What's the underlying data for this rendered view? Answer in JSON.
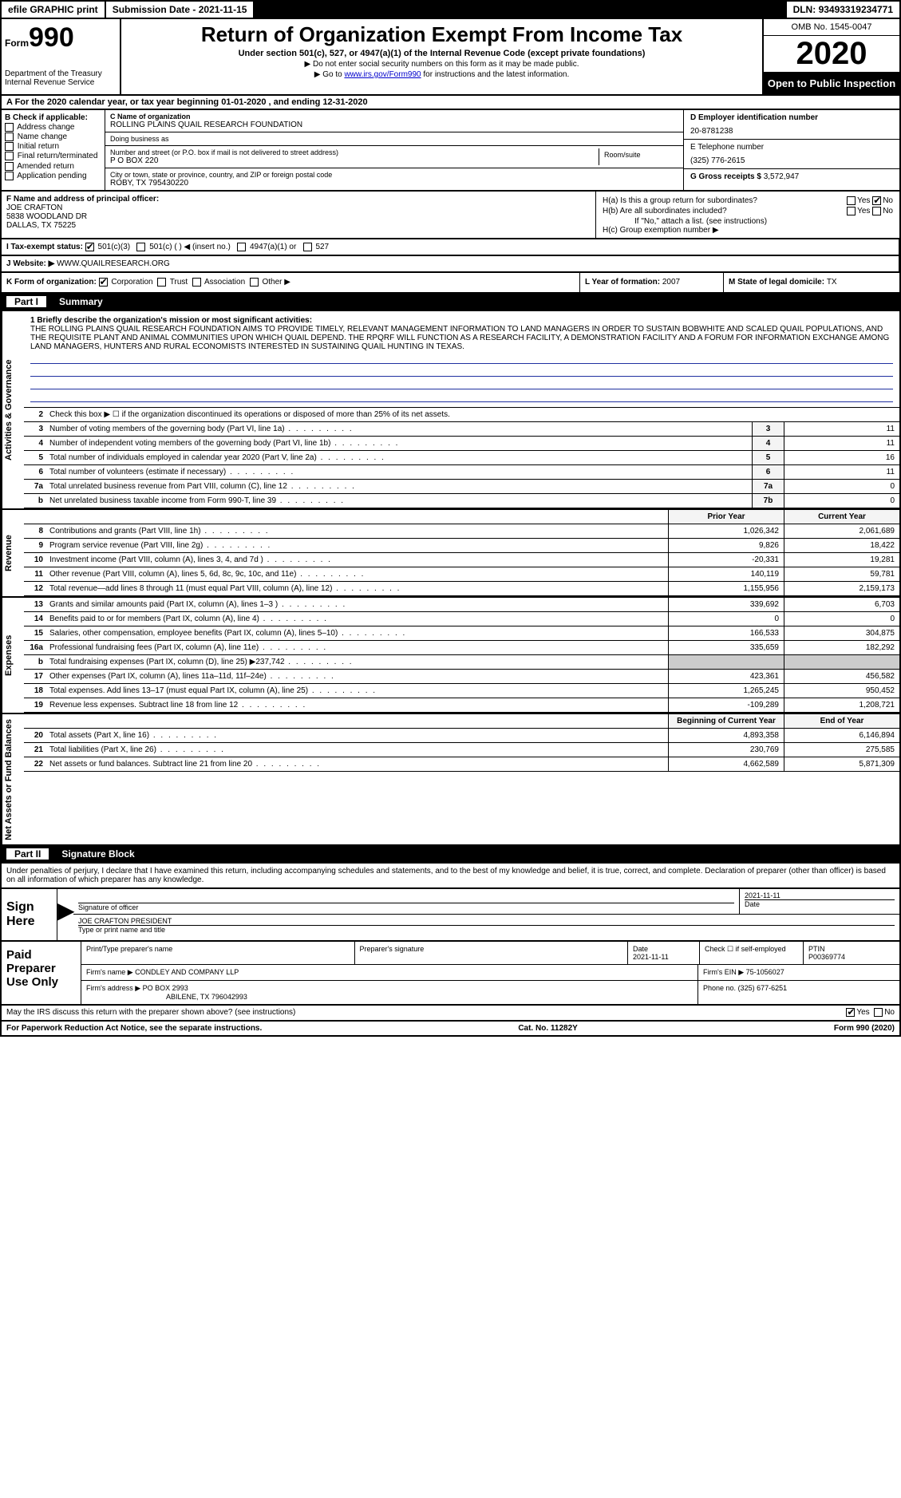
{
  "topbar": {
    "efile": "efile GRAPHIC print",
    "submission_label": "Submission Date - ",
    "submission_date": "2021-11-15",
    "dln_label": "DLN: ",
    "dln": "93493319234771"
  },
  "header": {
    "form_word": "Form",
    "form_num": "990",
    "dept": "Department of the Treasury\nInternal Revenue Service",
    "title": "Return of Organization Exempt From Income Tax",
    "sub": "Under section 501(c), 527, or 4947(a)(1) of the Internal Revenue Code (except private foundations)",
    "note1": "▶ Do not enter social security numbers on this form as it may be made public.",
    "note2_pre": "▶ Go to ",
    "note2_link": "www.irs.gov/Form990",
    "note2_post": " for instructions and the latest information.",
    "omb": "OMB No. 1545-0047",
    "year": "2020",
    "inspect": "Open to Public Inspection"
  },
  "rowA": "A For the 2020 calendar year, or tax year beginning 01-01-2020   , and ending 12-31-2020",
  "colB": {
    "title": "B Check if applicable:",
    "opts": [
      "Address change",
      "Name change",
      "Initial return",
      "Final return/terminated",
      "Amended return",
      "Application pending"
    ]
  },
  "colC": {
    "name_label": "C Name of organization",
    "name": "ROLLING PLAINS QUAIL RESEARCH FOUNDATION",
    "dba_label": "Doing business as",
    "dba": "",
    "addr_label": "Number and street (or P.O. box if mail is not delivered to street address)",
    "addr": "P O BOX 220",
    "room_label": "Room/suite",
    "city_label": "City or town, state or province, country, and ZIP or foreign postal code",
    "city": "ROBY, TX  795430220"
  },
  "colD": {
    "ein_label": "D Employer identification number",
    "ein": "20-8781238",
    "phone_label": "E Telephone number",
    "phone": "(325) 776-2615",
    "gross_label": "G Gross receipts $ ",
    "gross": "3,572,947"
  },
  "colF": {
    "label": "F  Name and address of principal officer:",
    "name": "JOE CRAFTON",
    "addr1": "5838 WOODLAND DR",
    "addr2": "DALLAS, TX  75225"
  },
  "colH": {
    "ha": "H(a)  Is this a group return for subordinates?",
    "ha_yes": "Yes",
    "ha_no": "No",
    "hb": "H(b)  Are all subordinates included?",
    "hb_yes": "Yes",
    "hb_no": "No",
    "hb_note": "If \"No,\" attach a list. (see instructions)",
    "hc": "H(c)  Group exemption number ▶"
  },
  "rowI": {
    "label": "I  Tax-exempt status:",
    "o1": "501(c)(3)",
    "o2": "501(c) (  ) ◀ (insert no.)",
    "o3": "4947(a)(1) or",
    "o4": "527"
  },
  "rowJ": {
    "label": "J  Website: ▶",
    "val": "WWW.QUAILRESEARCH.ORG"
  },
  "rowK": {
    "k": "K Form of organization:",
    "k1": "Corporation",
    "k2": "Trust",
    "k3": "Association",
    "k4": "Other ▶",
    "l": "L Year of formation: ",
    "lval": "2007",
    "m": "M State of legal domicile: ",
    "mval": "TX"
  },
  "part1": {
    "num": "Part I",
    "title": "Summary"
  },
  "mission": {
    "label": "1   Briefly describe the organization's mission or most significant activities:",
    "text": "THE ROLLING PLAINS QUAIL RESEARCH FOUNDATION AIMS TO PROVIDE TIMELY, RELEVANT MANAGEMENT INFORMATION TO LAND MANAGERS IN ORDER TO SUSTAIN BOBWHITE AND SCALED QUAIL POPULATIONS, AND THE REQUISITE PLANT AND ANIMAL COMMUNITIES UPON WHICH QUAIL DEPEND. THE RPQRF WILL FUNCTION AS A RESEARCH FACILITY, A DEMONSTRATION FACILITY AND A FORUM FOR INFORMATION EXCHANGE AMONG LAND MANAGERS, HUNTERS AND RURAL ECONOMISTS INTERESTED IN SUSTAINING QUAIL HUNTING IN TEXAS."
  },
  "lines_gov": [
    {
      "n": "2",
      "d": "Check this box ▶ ☐  if the organization discontinued its operations or disposed of more than 25% of its net assets.",
      "box": "",
      "v": ""
    },
    {
      "n": "3",
      "d": "Number of voting members of the governing body (Part VI, line 1a)",
      "box": "3",
      "v": "11"
    },
    {
      "n": "4",
      "d": "Number of independent voting members of the governing body (Part VI, line 1b)",
      "box": "4",
      "v": "11"
    },
    {
      "n": "5",
      "d": "Total number of individuals employed in calendar year 2020 (Part V, line 2a)",
      "box": "5",
      "v": "16"
    },
    {
      "n": "6",
      "d": "Total number of volunteers (estimate if necessary)",
      "box": "6",
      "v": "11"
    },
    {
      "n": "7a",
      "d": "Total unrelated business revenue from Part VIII, column (C), line 12",
      "box": "7a",
      "v": "0"
    },
    {
      "n": "b",
      "d": "Net unrelated business taxable income from Form 990-T, line 39",
      "box": "7b",
      "v": "0"
    }
  ],
  "hdr_rev": {
    "prior": "Prior Year",
    "current": "Current Year"
  },
  "lines_rev": [
    {
      "n": "8",
      "d": "Contributions and grants (Part VIII, line 1h)",
      "p": "1,026,342",
      "c": "2,061,689"
    },
    {
      "n": "9",
      "d": "Program service revenue (Part VIII, line 2g)",
      "p": "9,826",
      "c": "18,422"
    },
    {
      "n": "10",
      "d": "Investment income (Part VIII, column (A), lines 3, 4, and 7d )",
      "p": "-20,331",
      "c": "19,281"
    },
    {
      "n": "11",
      "d": "Other revenue (Part VIII, column (A), lines 5, 6d, 8c, 9c, 10c, and 11e)",
      "p": "140,119",
      "c": "59,781"
    },
    {
      "n": "12",
      "d": "Total revenue—add lines 8 through 11 (must equal Part VIII, column (A), line 12)",
      "p": "1,155,956",
      "c": "2,159,173"
    }
  ],
  "lines_exp": [
    {
      "n": "13",
      "d": "Grants and similar amounts paid (Part IX, column (A), lines 1–3 )",
      "p": "339,692",
      "c": "6,703"
    },
    {
      "n": "14",
      "d": "Benefits paid to or for members (Part IX, column (A), line 4)",
      "p": "0",
      "c": "0"
    },
    {
      "n": "15",
      "d": "Salaries, other compensation, employee benefits (Part IX, column (A), lines 5–10)",
      "p": "166,533",
      "c": "304,875"
    },
    {
      "n": "16a",
      "d": "Professional fundraising fees (Part IX, column (A), line 11e)",
      "p": "335,659",
      "c": "182,292"
    },
    {
      "n": "b",
      "d": "Total fundraising expenses (Part IX, column (D), line 25) ▶237,742",
      "p": "",
      "c": "",
      "shaded": true
    },
    {
      "n": "17",
      "d": "Other expenses (Part IX, column (A), lines 11a–11d, 11f–24e)",
      "p": "423,361",
      "c": "456,582"
    },
    {
      "n": "18",
      "d": "Total expenses. Add lines 13–17 (must equal Part IX, column (A), line 25)",
      "p": "1,265,245",
      "c": "950,452"
    },
    {
      "n": "19",
      "d": "Revenue less expenses. Subtract line 18 from line 12",
      "p": "-109,289",
      "c": "1,208,721"
    }
  ],
  "hdr_net": {
    "begin": "Beginning of Current Year",
    "end": "End of Year"
  },
  "lines_net": [
    {
      "n": "20",
      "d": "Total assets (Part X, line 16)",
      "p": "4,893,358",
      "c": "6,146,894"
    },
    {
      "n": "21",
      "d": "Total liabilities (Part X, line 26)",
      "p": "230,769",
      "c": "275,585"
    },
    {
      "n": "22",
      "d": "Net assets or fund balances. Subtract line 21 from line 20",
      "p": "4,662,589",
      "c": "5,871,309"
    }
  ],
  "side_labels": {
    "gov": "Activities & Governance",
    "rev": "Revenue",
    "exp": "Expenses",
    "net": "Net Assets or Fund Balances"
  },
  "part2": {
    "num": "Part II",
    "title": "Signature Block"
  },
  "sig_intro": "Under penalties of perjury, I declare that I have examined this return, including accompanying schedules and statements, and to the best of my knowledge and belief, it is true, correct, and complete. Declaration of preparer (other than officer) is based on all information of which preparer has any knowledge.",
  "sign": {
    "label": "Sign Here",
    "sig_of_officer": "Signature of officer",
    "date": "2021-11-11",
    "date_label": "Date",
    "name": "JOE CRAFTON PRESIDENT",
    "name_label": "Type or print name and title"
  },
  "prep": {
    "label": "Paid Preparer Use Only",
    "r1": {
      "c1": "Print/Type preparer's name",
      "c2": "Preparer's signature",
      "c3l": "Date",
      "c3": "2021-11-11",
      "c4": "Check ☐ if self-employed",
      "c5l": "PTIN",
      "c5": "P00369774"
    },
    "r2": {
      "c1l": "Firm's name      ▶",
      "c1": "CONDLEY AND COMPANY LLP",
      "c2l": "Firm's EIN ▶",
      "c2": "75-1056027"
    },
    "r3": {
      "c1l": "Firm's address ▶",
      "c1": "PO BOX 2993",
      "c1b": "ABILENE, TX  796042993",
      "c2l": "Phone no.",
      "c2": "(325) 677-6251"
    }
  },
  "discuss": {
    "q": "May the IRS discuss this return with the preparer shown above? (see instructions)",
    "yes": "Yes",
    "no": "No"
  },
  "footer": {
    "l": "For Paperwork Reduction Act Notice, see the separate instructions.",
    "c": "Cat. No. 11282Y",
    "r": "Form 990 (2020)"
  }
}
